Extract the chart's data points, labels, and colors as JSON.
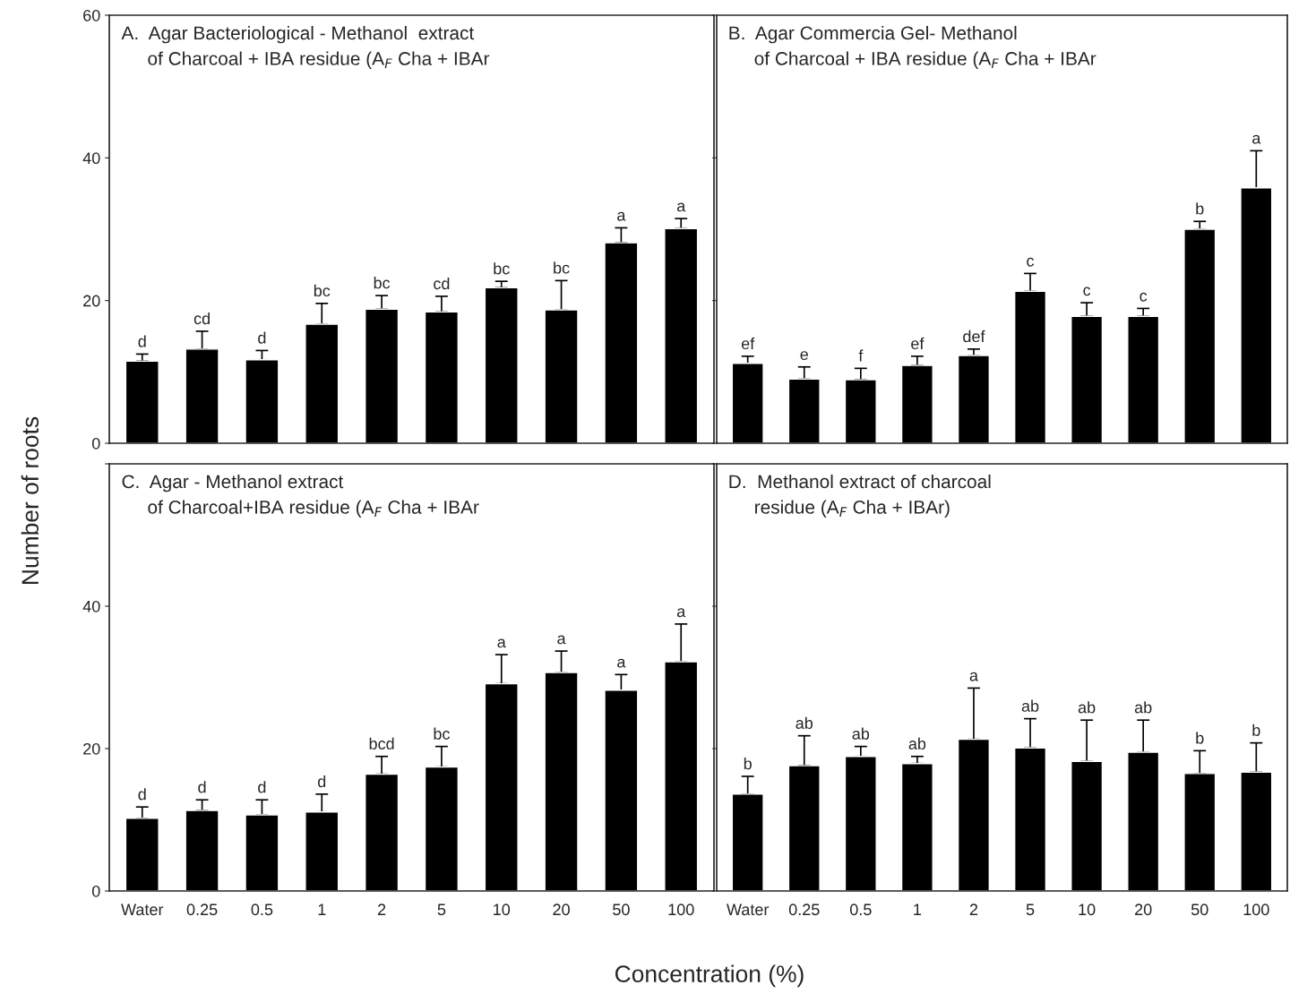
{
  "chart_data": [
    {
      "type": "bar",
      "title": "A.  Agar Bacteriological - Methanol  extract\n     of Charcoal + IBA residue (A$_{F}$ Cha + IBAr",
      "ylabel": "Number of roots",
      "categories": [
        "Water",
        "0.25",
        "0.5",
        "1",
        "2",
        "5",
        "10",
        "20",
        "50",
        "100"
      ],
      "color": "#000000",
      "values": [
        11.5,
        13.2,
        11.7,
        16.7,
        18.8,
        18.4,
        21.8,
        18.7,
        28.1,
        30.1
      ],
      "errors": [
        [
          11.5,
          12.5
        ],
        [
          13.2,
          15.7
        ],
        [
          11.7,
          13.0
        ],
        [
          16.7,
          19.6
        ],
        [
          18.8,
          20.7
        ],
        [
          18.4,
          20.6
        ],
        [
          21.8,
          22.7
        ],
        [
          18.7,
          22.8
        ],
        [
          28.1,
          30.2
        ],
        [
          30.1,
          31.5
        ]
      ],
      "annotations": [
        {
          "text": "d",
          "x": "Water",
          "y": 12.5
        },
        {
          "text": "cd",
          "x": "0.25",
          "y": 15.7
        },
        {
          "text": "d",
          "x": "0.5",
          "y": 13.0
        },
        {
          "text": "bc",
          "x": "1",
          "y": 19.6
        },
        {
          "text": "bc",
          "x": "2",
          "y": 20.7
        },
        {
          "text": "cd",
          "x": "5",
          "y": 20.6
        },
        {
          "text": "bc",
          "x": "10",
          "y": 22.7
        },
        {
          "text": "bc",
          "x": "20",
          "y": 22.8
        },
        {
          "text": "a",
          "x": "50",
          "y": 30.2
        },
        {
          "text": "a",
          "x": "100",
          "y": 31.5
        }
      ],
      "ylim": [
        0,
        60
      ],
      "yticks": [
        0,
        20,
        40,
        60
      ],
      "tick_labels": "y",
      "grid": false,
      "legend": false
    },
    {
      "type": "bar",
      "title": "B.  Agar Commercia Gel- Methanol\n     of Charcoal + IBA residue (A$_{F}$ Cha + IBAr",
      "categories": [
        "Water",
        "0.25",
        "0.5",
        "1",
        "2",
        "5",
        "10",
        "20",
        "50",
        "100"
      ],
      "color": "#000000",
      "values": [
        11.2,
        9.0,
        8.9,
        10.9,
        12.3,
        21.3,
        17.8,
        17.8,
        30.0,
        35.8
      ],
      "errors": [
        [
          11.2,
          12.2
        ],
        [
          9.0,
          10.7
        ],
        [
          8.9,
          10.5
        ],
        [
          10.9,
          12.2
        ],
        [
          12.3,
          13.2
        ],
        [
          21.3,
          23.8
        ],
        [
          17.8,
          19.7
        ],
        [
          17.8,
          18.9
        ],
        [
          30.0,
          31.1
        ],
        [
          35.8,
          41.0
        ]
      ],
      "annotations": [
        {
          "text": "ef",
          "x": "Water",
          "y": 12.2
        },
        {
          "text": "e",
          "x": "0.25",
          "y": 10.7
        },
        {
          "text": "f",
          "x": "0.5",
          "y": 10.5
        },
        {
          "text": "ef",
          "x": "1",
          "y": 12.2
        },
        {
          "text": "def",
          "x": "2",
          "y": 13.2
        },
        {
          "text": "c",
          "x": "5",
          "y": 23.8
        },
        {
          "text": "c",
          "x": "10",
          "y": 19.7
        },
        {
          "text": "c",
          "x": "20",
          "y": 18.9
        },
        {
          "text": "b",
          "x": "50",
          "y": 31.1
        },
        {
          "text": "a",
          "x": "100",
          "y": 41.0
        }
      ],
      "ylim": [
        0,
        60
      ],
      "yticks": [
        0,
        20,
        40,
        60
      ],
      "tick_labels": false,
      "grid": false,
      "legend": false
    },
    {
      "type": "bar",
      "title": "C.  Agar - Methanol extract\n     of Charcoal+IBA residue (A$_{F}$ Cha + IBAr",
      "xlabel": "Concentration (%)",
      "categories": [
        "Water",
        "0.25",
        "0.5",
        "1",
        "2",
        "5",
        "10",
        "20",
        "50",
        "100"
      ],
      "color": "#000000",
      "values": [
        10.2,
        11.3,
        10.7,
        11.1,
        16.4,
        17.4,
        29.1,
        30.7,
        28.2,
        32.2
      ],
      "errors": [
        [
          10.2,
          11.8
        ],
        [
          11.3,
          12.8
        ],
        [
          10.7,
          12.8
        ],
        [
          11.1,
          13.6
        ],
        [
          16.4,
          18.9
        ],
        [
          17.4,
          20.3
        ],
        [
          29.1,
          33.2
        ],
        [
          30.7,
          33.7
        ],
        [
          28.2,
          30.4
        ],
        [
          32.2,
          37.5
        ]
      ],
      "annotations": [
        {
          "text": "d",
          "x": "Water",
          "y": 11.8
        },
        {
          "text": "d",
          "x": "0.25",
          "y": 12.8
        },
        {
          "text": "d",
          "x": "0.5",
          "y": 12.8
        },
        {
          "text": "d",
          "x": "1",
          "y": 13.6
        },
        {
          "text": "bcd",
          "x": "2",
          "y": 18.9
        },
        {
          "text": "bc",
          "x": "5",
          "y": 20.3
        },
        {
          "text": "a",
          "x": "10",
          "y": 33.2
        },
        {
          "text": "a",
          "x": "20",
          "y": 33.7
        },
        {
          "text": "a",
          "x": "50",
          "y": 30.4
        },
        {
          "text": "a",
          "x": "100",
          "y": 37.5
        }
      ],
      "ylim": [
        0,
        60
      ],
      "yticks": [
        0,
        20,
        40,
        {
          "value": 60,
          "label": null
        }
      ],
      "grid": false,
      "legend": false
    },
    {
      "type": "bar",
      "title": "D.  Methanol extract of charcoal\n     residue (A$_{F}$ Cha + IBAr)",
      "categories": [
        "Water",
        "0.25",
        "0.5",
        "1",
        "2",
        "5",
        "10",
        "20",
        "50",
        "100"
      ],
      "color": "#000000",
      "values": [
        13.6,
        17.6,
        18.9,
        17.9,
        21.3,
        20.1,
        18.2,
        19.5,
        16.5,
        16.7
      ],
      "errors": [
        [
          13.6,
          16.1
        ],
        [
          17.6,
          21.8
        ],
        [
          18.9,
          20.3
        ],
        [
          17.9,
          18.9
        ],
        [
          21.3,
          28.5
        ],
        [
          20.1,
          24.2
        ],
        [
          18.2,
          24.0
        ],
        [
          19.5,
          24.0
        ],
        [
          16.5,
          19.7
        ],
        [
          16.7,
          20.8
        ]
      ],
      "annotations": [
        {
          "text": "b",
          "x": "Water",
          "y": 16.1
        },
        {
          "text": "ab",
          "x": "0.25",
          "y": 21.8
        },
        {
          "text": "ab",
          "x": "0.5",
          "y": 20.3
        },
        {
          "text": "ab",
          "x": "1",
          "y": 18.9
        },
        {
          "text": "a",
          "x": "2",
          "y": 28.5
        },
        {
          "text": "ab",
          "x": "5",
          "y": 24.2
        },
        {
          "text": "ab",
          "x": "10",
          "y": 24.0
        },
        {
          "text": "ab",
          "x": "20",
          "y": 24.0
        },
        {
          "text": "b",
          "x": "50",
          "y": 19.7
        },
        {
          "text": "b",
          "x": "100",
          "y": 20.8
        }
      ],
      "ylim": [
        0,
        60
      ],
      "yticks": [
        0,
        20,
        40,
        60
      ],
      "tick_labels": "x",
      "grid": false,
      "legend": false
    }
  ]
}
